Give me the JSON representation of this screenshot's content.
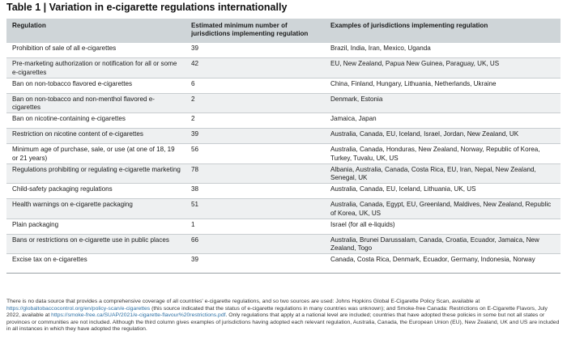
{
  "title": "Table 1 | Variation in e-cigarette regulations internationally",
  "headers": {
    "regulation": "Regulation",
    "estimated": "Estimated minimum number of jurisdictions implementing regulation",
    "examples": "Examples of jurisdictions implementing regulation"
  },
  "rows": [
    {
      "regulation": "Prohibition of sale of all e-cigarettes",
      "number": "39",
      "examples": "Brazil, India, Iran, Mexico, Uganda"
    },
    {
      "regulation": "Pre-marketing authorization or notification for all or some e-cigarettes",
      "number": "42",
      "examples": "EU, New Zealand, Papua New Guinea, Paraguay, UK, US"
    },
    {
      "regulation": "Ban on non-tobacco flavored e-cigarettes",
      "number": "6",
      "examples": "China, Finland, Hungary, Lithuania, Netherlands, Ukraine"
    },
    {
      "regulation": "Ban on non-tobacco and non-menthol flavored e-cigarettes",
      "number": "2",
      "examples": "Denmark, Estonia"
    },
    {
      "regulation": "Ban on nicotine-containing e-cigarettes",
      "number": "2",
      "examples": "Jamaica, Japan"
    },
    {
      "regulation": "Restriction on nicotine content of e-cigarettes",
      "number": "39",
      "examples": "Australia, Canada, EU, Iceland, Israel, Jordan, New Zealand, UK"
    },
    {
      "regulation": "Minimum age of purchase, sale, or use (at one of 18, 19 or 21 years)",
      "number": "56",
      "examples": "Australia, Canada, Honduras, New Zealand, Norway, Republic of Korea, Turkey, Tuvalu, UK, US"
    },
    {
      "regulation": "Regulations prohibiting or regulating e-cigarette marketing",
      "number": "78",
      "examples": "Albania, Australia, Canada, Costa Rica, EU, Iran, Nepal, New Zealand, Senegal, UK"
    },
    {
      "regulation": "Child-safety packaging regulations",
      "number": "38",
      "examples": "Australia, Canada, EU, Iceland, Lithuania, UK, US"
    },
    {
      "regulation": "Health warnings on e-cigarette packaging",
      "number": "51",
      "examples": "Australia, Canada, Egypt, EU, Greenland, Maldives, New Zealand, Republic of Korea, UK, US"
    },
    {
      "regulation": "Plain packaging",
      "number": "1",
      "examples": "Israel (for all e-liquids)"
    },
    {
      "regulation": "Bans or restrictions on e-cigarette use in public places",
      "number": "66",
      "examples": "Australia, Brunei Darussalam, Canada, Croatia, Ecuador, Jamaica, New Zealand, Togo"
    },
    {
      "regulation": "Excise tax on e-cigarettes",
      "number": "39",
      "examples": "Canada, Costa Rica, Denmark, Ecuador, Germany, Indonesia, Norway"
    }
  ],
  "footnote": {
    "part1": "There is no data source that provides a comprehensive coverage of all countries' e-cigarette regulations, and so two sources are used: Johns Hopkins Global E-Cigarette Policy Scan, available at ",
    "link1": "https://globaltobaccocontrol.org/en/policy-scan/e-cigarettes",
    "part2": " (this source indicated that the status of e-cigarette regulations in many countries was unknown); and Smoke-free Canada: Restrictions on E-Cigarette Flavors, July 2022, available at ",
    "link2": "https://smoke-free.ca/SUAP/2021/e-cigarette-flavour%20restrictions.pdf",
    "part3": ". Only regulations that apply at a national level are included; countries that have adopted these policies in some but not all states or provinces or communities are not included. Although the third column gives examples of jurisdictions having adopted each relevant regulation, Australia, Canada, the European Union (EU), New Zealand, UK and US are included in all instances in which they have adopted the regulation."
  }
}
